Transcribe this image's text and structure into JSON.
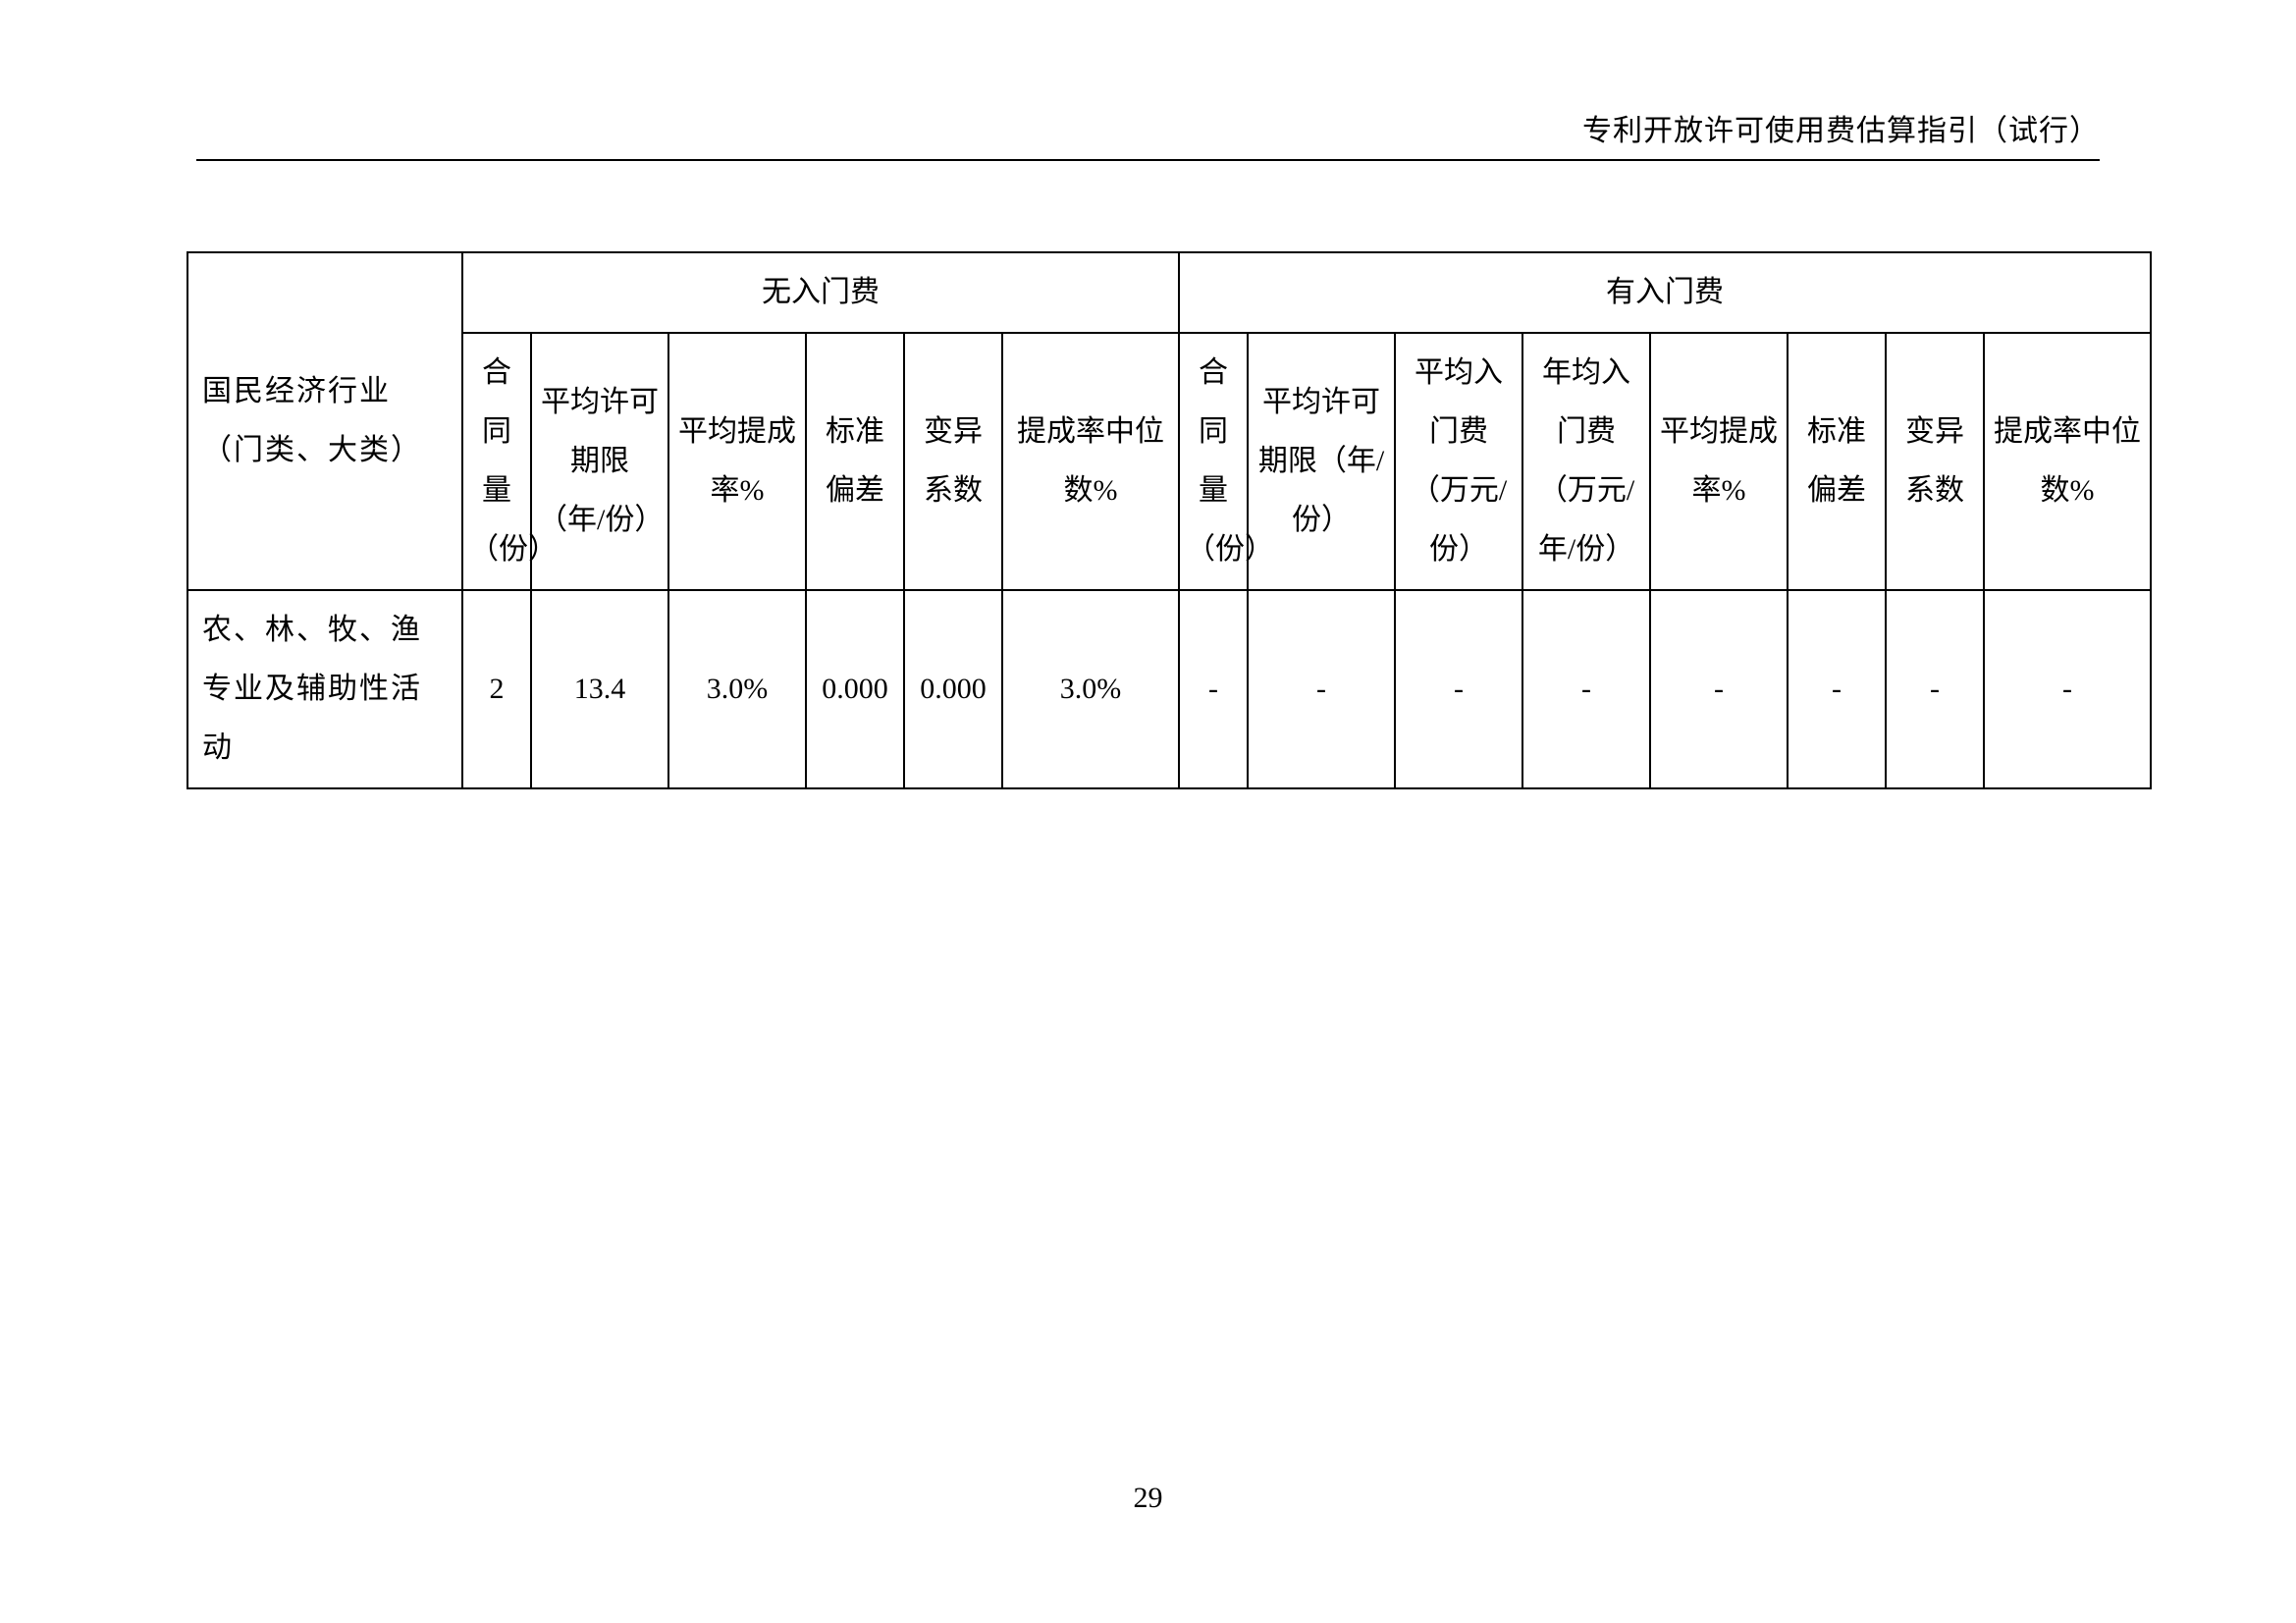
{
  "header": {
    "title": "专利开放许可使用费估算指引（试行）"
  },
  "table": {
    "group_no_fee": "无入门费",
    "group_with_fee": "有入门费",
    "headers": {
      "industry": "国民经济行业（门类、大类）",
      "contract_qty": "合同量（份）",
      "avg_term": "平均许可期限（年/份）",
      "avg_rate": "平均提成率%",
      "std_dev": "标准偏差",
      "cv": "变异系数",
      "median_rate": "提成率中位数%",
      "contract_qty2": "合同量（份）",
      "avg_term2": "平均许可期限（年/份）",
      "avg_entry_fee": "平均入门费（万元/份）",
      "annual_entry_fee": "年均入门费（万元/年/份）",
      "avg_rate2": "平均提成率%",
      "std_dev2": "标准偏差",
      "cv2": "变异系数",
      "median_rate2": "提成率中位数%"
    },
    "rows": [
      {
        "industry": "农、林、牧、渔专业及辅助性活动",
        "contract_qty": "2",
        "avg_term": "13.4",
        "avg_rate": "3.0%",
        "std_dev": "0.000",
        "cv": "0.000",
        "median_rate": "3.0%",
        "contract_qty2": "-",
        "avg_term2": "-",
        "avg_entry_fee": "-",
        "annual_entry_fee": "-",
        "avg_rate2": "-",
        "std_dev2": "-",
        "cv2": "-",
        "median_rate2": "-"
      }
    ]
  },
  "page_number": "29"
}
